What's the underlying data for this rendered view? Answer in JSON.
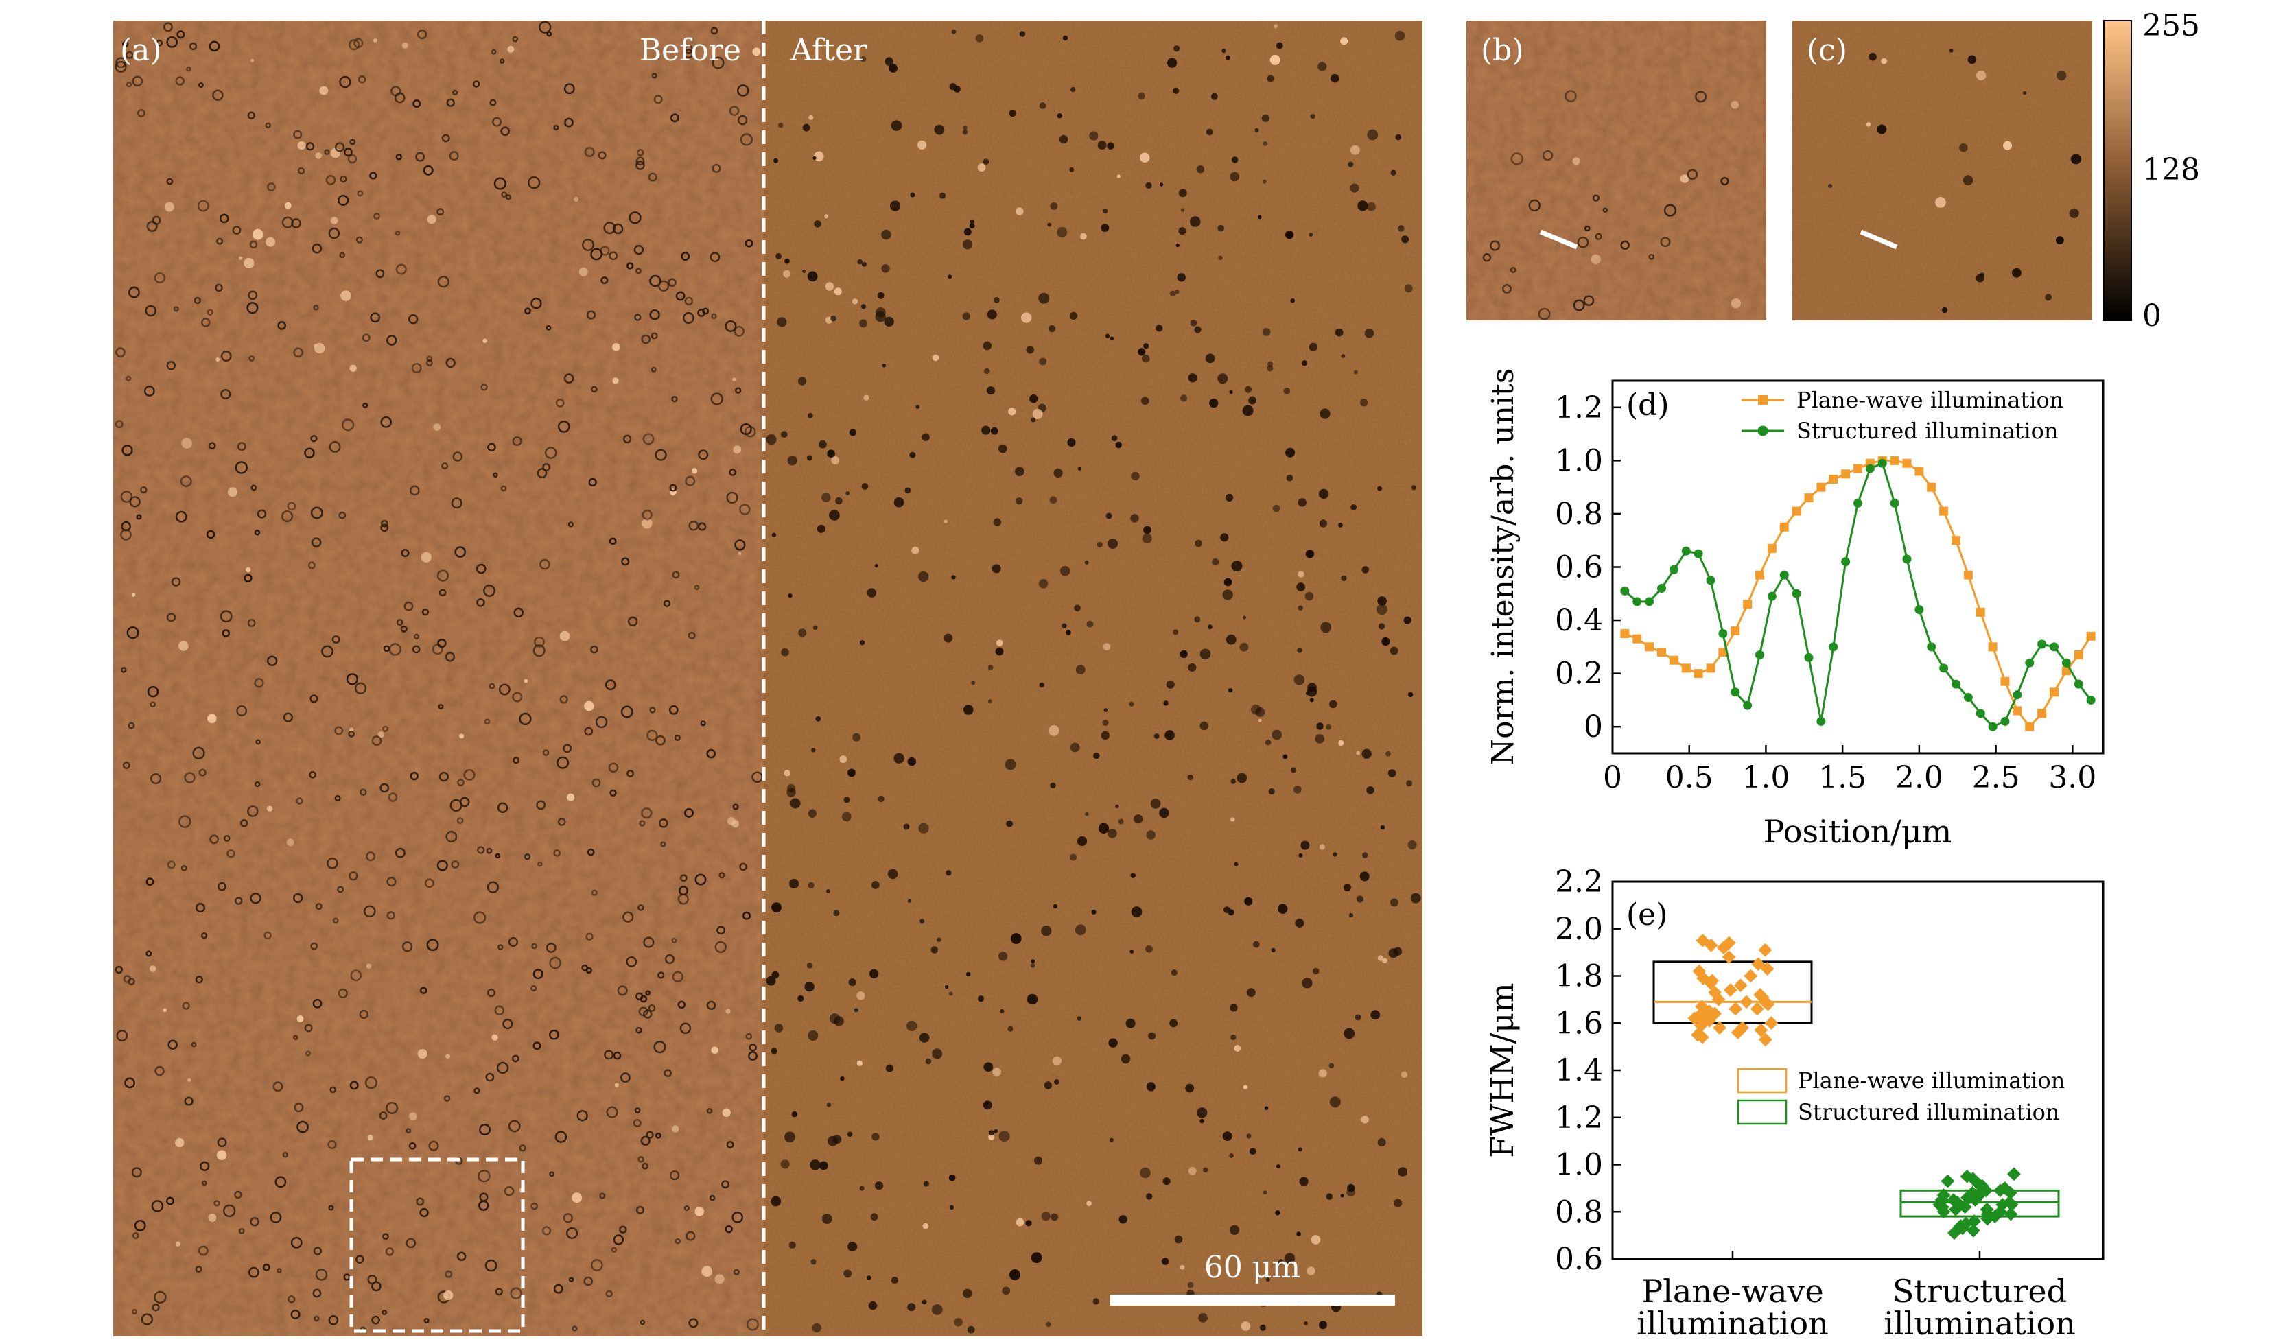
{
  "panels": {
    "a": {
      "label": "(a)",
      "before_label": "Before",
      "after_label": "After",
      "scalebar_label": "60 μm"
    },
    "b": {
      "label": "(b)"
    },
    "c": {
      "label": "(c)"
    },
    "colorbar": {
      "ticks": [
        "255",
        "128",
        "0"
      ]
    }
  },
  "chart_data": [
    {
      "panel": "(d)",
      "type": "line",
      "xlabel": "Position/μm",
      "ylabel": "Norm. intensity/arb. units",
      "xlim": [
        0,
        3.2
      ],
      "ylim": [
        -0.1,
        1.3
      ],
      "xticks": [
        0,
        0.5,
        1.0,
        1.5,
        2.0,
        2.5,
        3.0
      ],
      "xtick_labels": [
        "0",
        "0.5",
        "1.0",
        "1.5",
        "2.0",
        "2.5",
        "3.0"
      ],
      "yticks": [
        0,
        0.2,
        0.4,
        0.6,
        0.8,
        1.0,
        1.2
      ],
      "ytick_labels": [
        "0",
        "0.2",
        "0.4",
        "0.6",
        "0.8",
        "1.0",
        "1.2"
      ],
      "legend_position": "top-right",
      "series": [
        {
          "name": "Plane-wave illumination",
          "color": "#f39c2b",
          "marker": "square",
          "x": [
            0.08,
            0.16,
            0.24,
            0.32,
            0.4,
            0.48,
            0.56,
            0.64,
            0.72,
            0.8,
            0.88,
            0.96,
            1.04,
            1.12,
            1.2,
            1.28,
            1.36,
            1.44,
            1.52,
            1.6,
            1.68,
            1.76,
            1.84,
            1.92,
            2.0,
            2.08,
            2.16,
            2.24,
            2.32,
            2.4,
            2.48,
            2.56,
            2.64,
            2.72,
            2.8,
            2.88,
            2.96,
            3.04,
            3.12
          ],
          "y": [
            0.35,
            0.33,
            0.3,
            0.28,
            0.25,
            0.22,
            0.2,
            0.22,
            0.28,
            0.36,
            0.46,
            0.57,
            0.67,
            0.75,
            0.81,
            0.86,
            0.9,
            0.93,
            0.95,
            0.97,
            0.99,
            1.0,
            1.0,
            0.99,
            0.96,
            0.9,
            0.81,
            0.7,
            0.57,
            0.43,
            0.3,
            0.17,
            0.06,
            0.0,
            0.05,
            0.13,
            0.21,
            0.27,
            0.34
          ]
        },
        {
          "name": "Structured illumination",
          "color": "#1e8f1e",
          "marker": "circle",
          "x": [
            0.08,
            0.16,
            0.24,
            0.32,
            0.4,
            0.48,
            0.56,
            0.64,
            0.72,
            0.8,
            0.88,
            0.96,
            1.04,
            1.12,
            1.2,
            1.28,
            1.36,
            1.44,
            1.52,
            1.6,
            1.68,
            1.76,
            1.84,
            1.92,
            2.0,
            2.08,
            2.16,
            2.24,
            2.32,
            2.4,
            2.48,
            2.56,
            2.64,
            2.72,
            2.8,
            2.88,
            2.96,
            3.04,
            3.12
          ],
          "y": [
            0.51,
            0.47,
            0.47,
            0.52,
            0.59,
            0.66,
            0.65,
            0.55,
            0.35,
            0.13,
            0.08,
            0.27,
            0.49,
            0.57,
            0.5,
            0.26,
            0.02,
            0.3,
            0.62,
            0.84,
            0.97,
            0.99,
            0.84,
            0.63,
            0.44,
            0.3,
            0.22,
            0.16,
            0.11,
            0.05,
            0.0,
            0.02,
            0.12,
            0.24,
            0.31,
            0.3,
            0.24,
            0.16,
            0.1
          ]
        }
      ]
    },
    {
      "panel": "(e)",
      "type": "box",
      "xlabel": "",
      "ylabel": "FWHM/μm",
      "ylim": [
        0.6,
        2.2
      ],
      "yticks": [
        0.6,
        0.8,
        1.0,
        1.2,
        1.4,
        1.6,
        1.8,
        2.0,
        2.2
      ],
      "ytick_labels": [
        "0.6",
        "0.8",
        "1.0",
        "1.2",
        "1.4",
        "1.6",
        "1.8",
        "2.0",
        "2.2"
      ],
      "categories": [
        "Plane-wave illumination",
        "Structured illumination"
      ],
      "category_labels": [
        [
          "Plane-wave",
          "illumination"
        ],
        [
          "Structured",
          "illumination"
        ]
      ],
      "legend_position": "center-right",
      "series": [
        {
          "name": "Plane-wave illumination",
          "color": "#f39c2b",
          "box": {
            "q1": 1.6,
            "median": 1.69,
            "q3": 1.86
          },
          "points": [
            1.93,
            1.95,
            1.91,
            1.94,
            1.92,
            1.88,
            1.85,
            1.83,
            1.82,
            1.8,
            1.79,
            1.77,
            1.76,
            1.74,
            1.73,
            1.71,
            1.7,
            1.69,
            1.68,
            1.67,
            1.66,
            1.65,
            1.64,
            1.63,
            1.62,
            1.61,
            1.6,
            1.59,
            1.58,
            1.57,
            1.56,
            1.55,
            1.54,
            1.53,
            1.72,
            1.78,
            1.66,
            1.62,
            1.58,
            1.69
          ]
        },
        {
          "name": "Structured illumination",
          "color": "#1e8f1e",
          "box": {
            "q1": 0.78,
            "median": 0.84,
            "q3": 0.89
          },
          "points": [
            0.96,
            0.95,
            0.94,
            0.93,
            0.92,
            0.91,
            0.9,
            0.89,
            0.89,
            0.88,
            0.87,
            0.87,
            0.86,
            0.86,
            0.85,
            0.85,
            0.84,
            0.84,
            0.83,
            0.83,
            0.82,
            0.82,
            0.81,
            0.8,
            0.8,
            0.79,
            0.78,
            0.77,
            0.76,
            0.75,
            0.74,
            0.73,
            0.72,
            0.71,
            0.88,
            0.86,
            0.83,
            0.81,
            0.79,
            0.85
          ]
        }
      ]
    }
  ]
}
